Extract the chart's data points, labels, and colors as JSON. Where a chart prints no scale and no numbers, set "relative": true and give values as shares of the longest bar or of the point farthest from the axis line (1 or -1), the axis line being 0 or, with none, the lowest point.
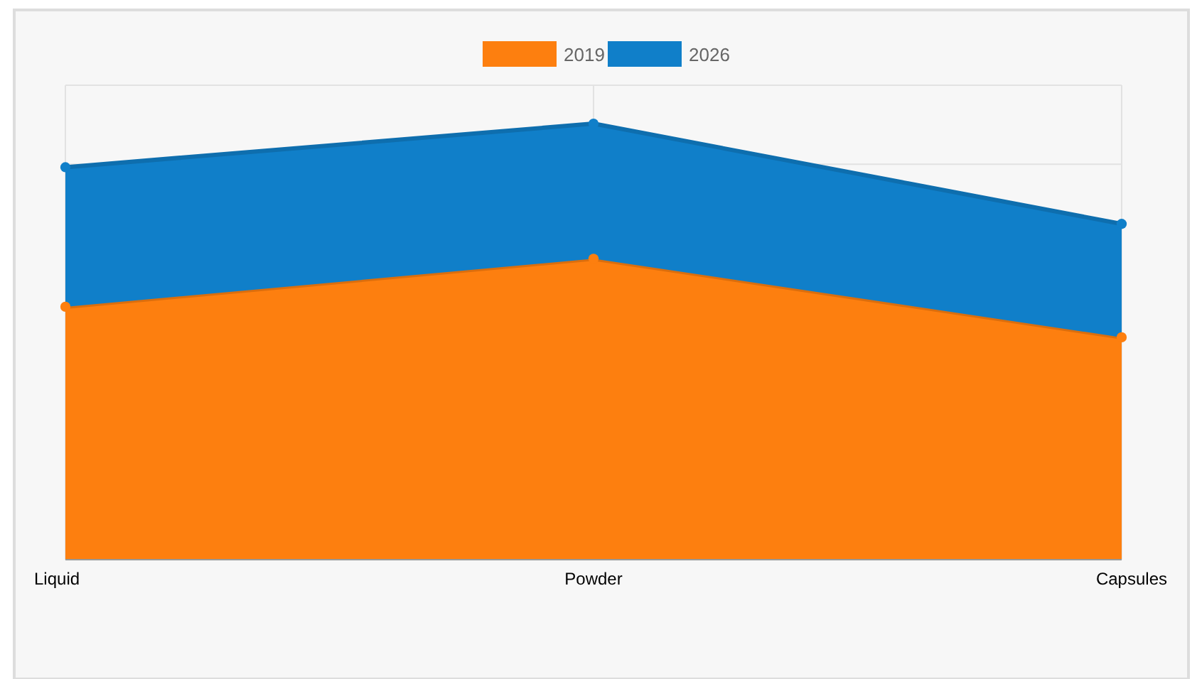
{
  "chart_data": {
    "type": "area",
    "relative": true,
    "stacked": true,
    "categories": [
      "Liquid",
      "Powder",
      "Capsules"
    ],
    "series": [
      {
        "name": "2019",
        "color": "#fd7f0f",
        "values": [
          0.58,
          0.69,
          0.51
        ]
      },
      {
        "name": "2026",
        "color": "#107fc9",
        "values": [
          0.32,
          0.31,
          0.26
        ]
      }
    ],
    "legend": "top",
    "marker": "circle",
    "grid": true
  }
}
